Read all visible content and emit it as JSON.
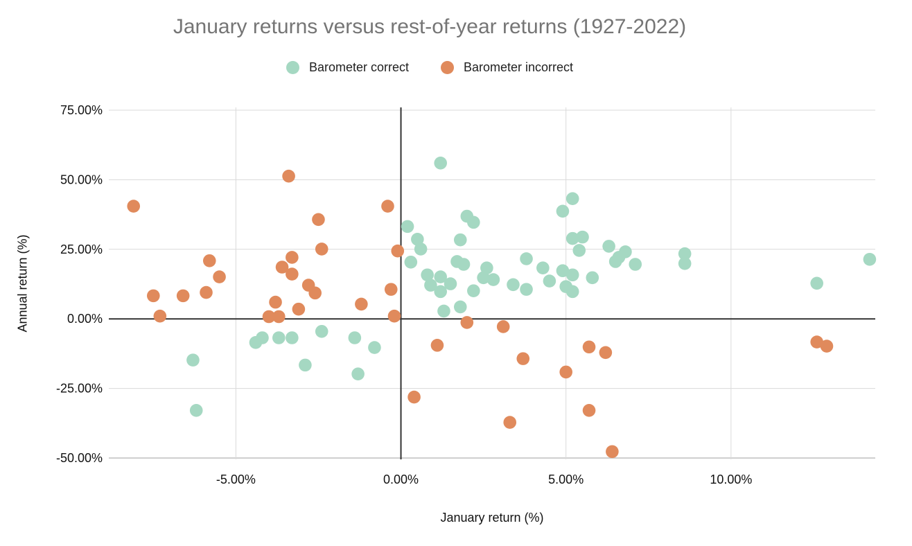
{
  "chart": {
    "title": "January returns versus rest-of-year returns (1927-2022)"
  },
  "legend": {
    "items": [
      {
        "label": "Barometer correct",
        "color": "#a5d8c2"
      },
      {
        "label": "Barometer incorrect",
        "color": "#e08a5c"
      }
    ]
  },
  "chart_data": {
    "type": "scatter",
    "title": "January returns versus rest-of-year returns (1927-2022)",
    "xlabel": "January return (%)",
    "ylabel": "Annual return (%)",
    "xlim": [
      -8.85,
      14.37
    ],
    "ylim": [
      -50.5,
      76
    ],
    "grid": true,
    "legend_position": "top",
    "x_ticks": [
      {
        "value": -5,
        "label": "-5.00%"
      },
      {
        "value": 0,
        "label": "0.00%"
      },
      {
        "value": 5,
        "label": "5.00%"
      },
      {
        "value": 10,
        "label": "10.00%"
      }
    ],
    "y_ticks": [
      {
        "value": 75,
        "label": "75.00%"
      },
      {
        "value": 50,
        "label": "50.00%"
      },
      {
        "value": 25,
        "label": "25.00%"
      },
      {
        "value": 0,
        "label": "0.00%"
      },
      {
        "value": -25,
        "label": "-25.00%"
      },
      {
        "value": -50,
        "label": "-50.00%"
      }
    ],
    "series": [
      {
        "name": "Barometer correct",
        "color": "#a5d8c2",
        "points": [
          [
            1.2,
            56
          ],
          [
            5.2,
            43.2
          ],
          [
            4.9,
            38.7
          ],
          [
            2,
            36.9
          ],
          [
            2.2,
            34.7
          ],
          [
            0.2,
            33.2
          ],
          [
            0.5,
            28.6
          ],
          [
            1.8,
            28.4
          ],
          [
            0.6,
            25.1
          ],
          [
            0.3,
            20.4
          ],
          [
            1.7,
            20.6
          ],
          [
            1.9,
            19.6
          ],
          [
            0.8,
            15.8
          ],
          [
            1.2,
            15.1
          ],
          [
            0.9,
            12.1
          ],
          [
            1.5,
            12.6
          ],
          [
            1.2,
            9.8
          ],
          [
            2.2,
            10.1
          ],
          [
            2.6,
            18.3
          ],
          [
            2.5,
            14.8
          ],
          [
            2.8,
            14.1
          ],
          [
            3.4,
            12.3
          ],
          [
            3.8,
            10.6
          ],
          [
            3.8,
            21.6
          ],
          [
            4.3,
            18.3
          ],
          [
            4.5,
            13.6
          ],
          [
            4.9,
            17.3
          ],
          [
            5.2,
            15.8
          ],
          [
            5,
            11.6
          ],
          [
            5.2,
            9.8
          ],
          [
            5.4,
            24.6
          ],
          [
            5.5,
            29.4
          ],
          [
            5.2,
            28.9
          ],
          [
            5.8,
            14.8
          ],
          [
            6.3,
            26.1
          ],
          [
            6.8,
            24.1
          ],
          [
            6.6,
            22.1
          ],
          [
            6.5,
            20.6
          ],
          [
            7.1,
            19.6
          ],
          [
            8.6,
            23.4
          ],
          [
            8.6,
            19.9
          ],
          [
            12.6,
            12.8
          ],
          [
            14.2,
            21.4
          ],
          [
            1.3,
            2.8
          ],
          [
            1.8,
            4.3
          ],
          [
            -6.3,
            -14.8
          ],
          [
            -6.2,
            -32.9
          ],
          [
            -4.4,
            -8.5
          ],
          [
            -4.2,
            -6.8
          ],
          [
            -3.7,
            -6.8
          ],
          [
            -3.3,
            -6.8
          ],
          [
            -2.4,
            -4.5
          ],
          [
            -2.9,
            -16.6
          ],
          [
            -1.4,
            -6.8
          ],
          [
            -0.8,
            -10.3
          ],
          [
            -1.3,
            -19.8
          ]
        ]
      },
      {
        "name": "Barometer incorrect",
        "color": "#e08a5c",
        "points": [
          [
            -8.1,
            40.5
          ],
          [
            -3.4,
            51.3
          ],
          [
            -2.5,
            35.7
          ],
          [
            -0.4,
            40.5
          ],
          [
            -2.4,
            25.1
          ],
          [
            -0.1,
            24.4
          ],
          [
            -5.8,
            20.9
          ],
          [
            -5.5,
            15.1
          ],
          [
            -7.5,
            8.3
          ],
          [
            -6.6,
            8.3
          ],
          [
            -5.9,
            9.5
          ],
          [
            -7.3,
            1
          ],
          [
            -3.6,
            18.6
          ],
          [
            -3.3,
            22.1
          ],
          [
            -3.3,
            16.1
          ],
          [
            -2.8,
            12.1
          ],
          [
            -2.6,
            9.3
          ],
          [
            -3.8,
            6
          ],
          [
            -3.1,
            3.5
          ],
          [
            -4,
            0.8
          ],
          [
            -3.7,
            0.8
          ],
          [
            -1.2,
            5.3
          ],
          [
            -0.3,
            10.6
          ],
          [
            -0.2,
            1
          ],
          [
            1.1,
            -9.5
          ],
          [
            2,
            -1.3
          ],
          [
            3.1,
            -2.8
          ],
          [
            3.7,
            -14.3
          ],
          [
            5,
            -19.1
          ],
          [
            5.7,
            -10.1
          ],
          [
            6.2,
            -12.1
          ],
          [
            0.4,
            -28.1
          ],
          [
            3.3,
            -37.2
          ],
          [
            5.7,
            -32.9
          ],
          [
            6.4,
            -47.7
          ],
          [
            12.6,
            -8.3
          ],
          [
            12.9,
            -9.8
          ]
        ]
      }
    ],
    "style": {
      "gridline_color": "#dadada",
      "baseline_color": "#cfcfcf",
      "zero_axis_color": "#333333",
      "title_color": "#757575",
      "tick_label_color": "#111111"
    }
  }
}
